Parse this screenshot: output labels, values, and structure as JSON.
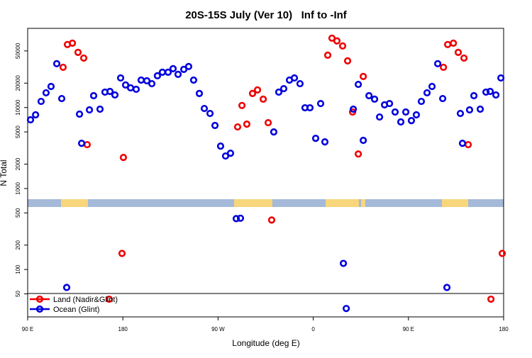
{
  "chart_data": {
    "type": "scatter",
    "title": "20S-15S July (Ver 10)   Inf to -Inf",
    "xlabel": "Longitude (deg E)",
    "ylabel": "N Total",
    "log_y": true,
    "legend": "bottom-left",
    "xlim": [
      90,
      540
    ],
    "ylim": [
      26,
      95000
    ],
    "xticks": [
      {
        "value": 90,
        "label": "90 E"
      },
      180,
      {
        "value": 270,
        "label": "90 W"
      },
      {
        "value": 360,
        "label": "0"
      },
      {
        "value": 450,
        "label": "90 E"
      },
      {
        "value": 540,
        "label": "180"
      }
    ],
    "yticks": [
      50,
      100,
      200,
      500,
      1000,
      2000,
      5000,
      10000,
      20000,
      50000
    ],
    "series": [
      {
        "name": "Land (Nadir&Glint)",
        "color": "#ee0000",
        "x": [
          123.5,
          127.6,
          132.3,
          137.6,
          143.0,
          146.3,
          167.1,
          179.2,
          180.5,
          288.5,
          292.6,
          297.2,
          302.6,
          307.3,
          312.7,
          317.4,
          320.7,
          373.7,
          377.7,
          382.4,
          387.8,
          392.5,
          397.2,
          402.6,
          407.3,
          483.1,
          487.1,
          492.5,
          497.1,
          502.5,
          506.5,
          528.0,
          538.7
        ],
        "values": [
          31400,
          60000,
          62400,
          48000,
          40800,
          3480,
          43,
          158,
          2420,
          5760,
          10600,
          6240,
          14900,
          16500,
          12700,
          6500,
          408,
          44300,
          71900,
          66400,
          57600,
          37700,
          8810,
          2670,
          24200,
          31400,
          60000,
          62400,
          48000,
          40800,
          3480,
          43,
          158
        ]
      },
      {
        "name": "Ocean (Glint)",
        "color": "#0000dd",
        "x": [
          92.7,
          97.5,
          102.7,
          107.4,
          112.1,
          117.5,
          122.2,
          126.9,
          139.0,
          141.0,
          148.4,
          152.4,
          158.4,
          163.1,
          167.8,
          172.5,
          177.9,
          182.6,
          187.3,
          192.6,
          197.3,
          202.7,
          207.4,
          212.7,
          217.4,
          222.8,
          227.5,
          232.2,
          237.6,
          242.2,
          246.9,
          252.3,
          257.0,
          262.4,
          267.1,
          272.4,
          277.1,
          281.8,
          287.2,
          291.2,
          322.7,
          327.4,
          332.1,
          337.5,
          342.2,
          347.5,
          352.2,
          356.9,
          362.3,
          367.0,
          371.0,
          388.5,
          391.2,
          397.9,
          402.6,
          407.3,
          412.7,
          418.0,
          422.7,
          427.4,
          432.1,
          437.4,
          442.8,
          447.5,
          452.8,
          457.5,
          462.2,
          467.6,
          472.3,
          477.7,
          482.4,
          486.4,
          499.1,
          501.1,
          507.8,
          511.9,
          517.9,
          523.3,
          527.3,
          532.7,
          537.4
        ],
        "values": [
          7050,
          8130,
          11900,
          15200,
          18200,
          34800,
          12900,
          60,
          8290,
          3620,
          9350,
          14000,
          9550,
          15500,
          15800,
          14300,
          23200,
          19000,
          17500,
          16800,
          21800,
          21400,
          19700,
          24700,
          27300,
          27300,
          30200,
          25700,
          29600,
          32100,
          21800,
          14900,
          9730,
          8450,
          6000,
          3340,
          2520,
          2730,
          425,
          430,
          5000,
          15500,
          17100,
          21800,
          23200,
          19700,
          9930,
          9930,
          4170,
          11200,
          3770,
          119,
          33,
          9550,
          19300,
          3930,
          14000,
          12700,
          7640,
          10800,
          11200,
          8810,
          6640,
          8810,
          6900,
          8130,
          11900,
          15200,
          18200,
          34800,
          12900,
          60,
          8450,
          3620,
          9350,
          14000,
          9550,
          15500,
          15800,
          14300,
          23200
        ]
      }
    ]
  }
}
